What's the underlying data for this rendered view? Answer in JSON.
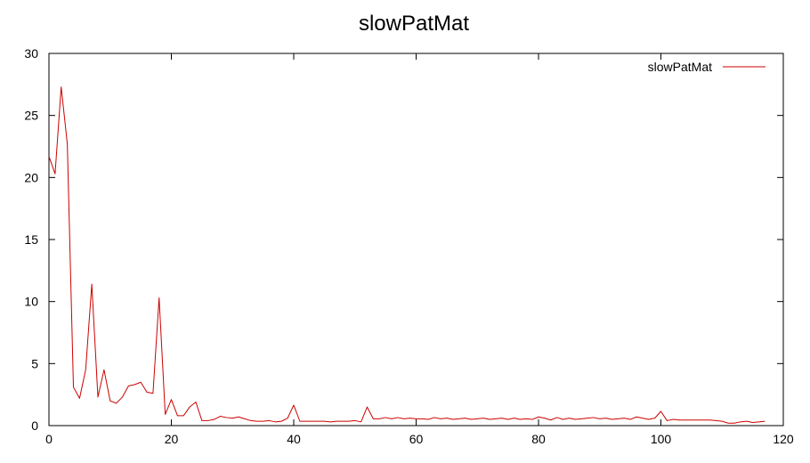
{
  "chart_data": {
    "type": "line",
    "title": "slowPatMat",
    "xlabel": "",
    "ylabel": "",
    "xlim": [
      0,
      120
    ],
    "ylim": [
      0,
      30
    ],
    "xticks": [
      0,
      20,
      40,
      60,
      80,
      100,
      120
    ],
    "yticks": [
      0,
      5,
      10,
      15,
      20,
      25,
      30
    ],
    "grid": false,
    "legend": {
      "placement": "top-right"
    },
    "series": [
      {
        "name": "slowPatMat",
        "color": "#cc0000",
        "x": [
          0,
          1,
          2,
          3,
          4,
          5,
          6,
          7,
          8,
          9,
          10,
          11,
          12,
          13,
          14,
          15,
          16,
          17,
          18,
          19,
          20,
          21,
          22,
          23,
          24,
          25,
          26,
          27,
          28,
          29,
          30,
          31,
          32,
          33,
          34,
          35,
          36,
          37,
          38,
          39,
          40,
          41,
          42,
          43,
          44,
          45,
          46,
          47,
          48,
          49,
          50,
          51,
          52,
          53,
          54,
          55,
          56,
          57,
          58,
          59,
          60,
          61,
          62,
          63,
          64,
          65,
          66,
          67,
          68,
          69,
          70,
          71,
          72,
          73,
          74,
          75,
          76,
          77,
          78,
          79,
          80,
          81,
          82,
          83,
          84,
          85,
          86,
          87,
          88,
          89,
          90,
          91,
          92,
          93,
          94,
          95,
          96,
          97,
          98,
          99,
          100,
          101,
          102,
          103,
          104,
          105,
          106,
          107,
          108,
          109,
          110,
          111,
          112,
          113,
          114,
          115,
          116,
          117
        ],
        "y": [
          21.7,
          20.3,
          27.3,
          22.7,
          3.1,
          2.2,
          4.5,
          11.4,
          2.3,
          4.5,
          2.0,
          1.8,
          2.3,
          3.2,
          3.3,
          3.5,
          2.7,
          2.6,
          10.3,
          0.9,
          2.1,
          0.8,
          0.8,
          1.5,
          1.9,
          0.4,
          0.4,
          0.5,
          0.75,
          0.65,
          0.6,
          0.7,
          0.55,
          0.4,
          0.35,
          0.35,
          0.4,
          0.3,
          0.35,
          0.6,
          1.65,
          0.35,
          0.35,
          0.35,
          0.35,
          0.35,
          0.3,
          0.35,
          0.35,
          0.35,
          0.4,
          0.3,
          1.5,
          0.55,
          0.55,
          0.65,
          0.55,
          0.65,
          0.55,
          0.6,
          0.55,
          0.55,
          0.5,
          0.65,
          0.55,
          0.6,
          0.5,
          0.55,
          0.6,
          0.5,
          0.55,
          0.6,
          0.5,
          0.55,
          0.6,
          0.5,
          0.6,
          0.5,
          0.55,
          0.5,
          0.7,
          0.6,
          0.45,
          0.65,
          0.5,
          0.6,
          0.5,
          0.55,
          0.6,
          0.65,
          0.55,
          0.6,
          0.5,
          0.55,
          0.6,
          0.5,
          0.7,
          0.6,
          0.5,
          0.6,
          1.15,
          0.4,
          0.5,
          0.45,
          0.45,
          0.45,
          0.45,
          0.45,
          0.45,
          0.4,
          0.35,
          0.2,
          0.2,
          0.3,
          0.35,
          0.25,
          0.3,
          0.35
        ]
      }
    ]
  }
}
